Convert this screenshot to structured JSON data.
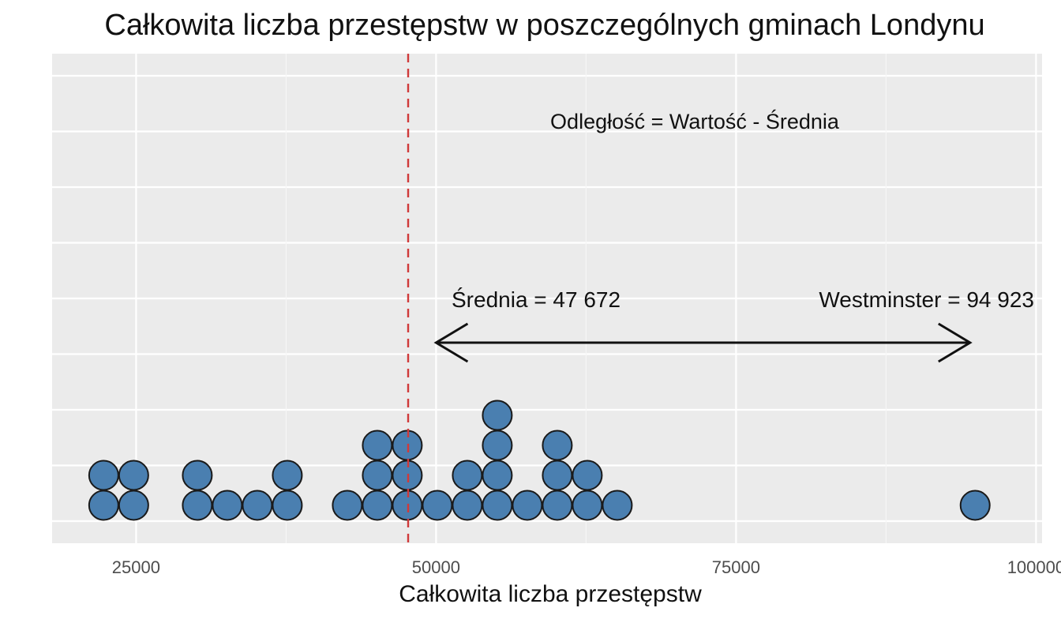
{
  "chart_data": {
    "type": "dotplot",
    "title": "Całkowita liczba przestępstw w poszczególnych gminach Londynu",
    "xlabel": "Całkowita liczba przestępstw",
    "ylabel": "",
    "xlim": [
      18000,
      100500
    ],
    "x_ticks": [
      25000,
      50000,
      75000,
      100000
    ],
    "x_tick_labels": [
      "25000",
      "50000",
      "75000",
      "100000"
    ],
    "grid": true,
    "dot_color": "#4a7fb0",
    "mean_line_color": "#d03a3a",
    "panel_color": "#ebebeb",
    "mean": 47672,
    "points": [
      {
        "x": 22300,
        "count": 2
      },
      {
        "x": 24800,
        "count": 2
      },
      {
        "x": 30100,
        "count": 2
      },
      {
        "x": 32600,
        "count": 1
      },
      {
        "x": 35100,
        "count": 1
      },
      {
        "x": 37600,
        "count": 2
      },
      {
        "x": 42600,
        "count": 1
      },
      {
        "x": 45100,
        "count": 3
      },
      {
        "x": 47600,
        "count": 3
      },
      {
        "x": 50100,
        "count": 1
      },
      {
        "x": 52600,
        "count": 2
      },
      {
        "x": 55100,
        "count": 4
      },
      {
        "x": 57600,
        "count": 1
      },
      {
        "x": 60100,
        "count": 3
      },
      {
        "x": 62600,
        "count": 2
      },
      {
        "x": 65100,
        "count": 1
      },
      {
        "x": 94923,
        "count": 1
      }
    ],
    "annotations": {
      "formula": "Odległość = Wartość - Średnia",
      "mean_label": "Średnia = 47 672",
      "westminster_label": "Westminster = 94 923",
      "arrow_from": 50000,
      "arrow_to": 94500
    }
  }
}
